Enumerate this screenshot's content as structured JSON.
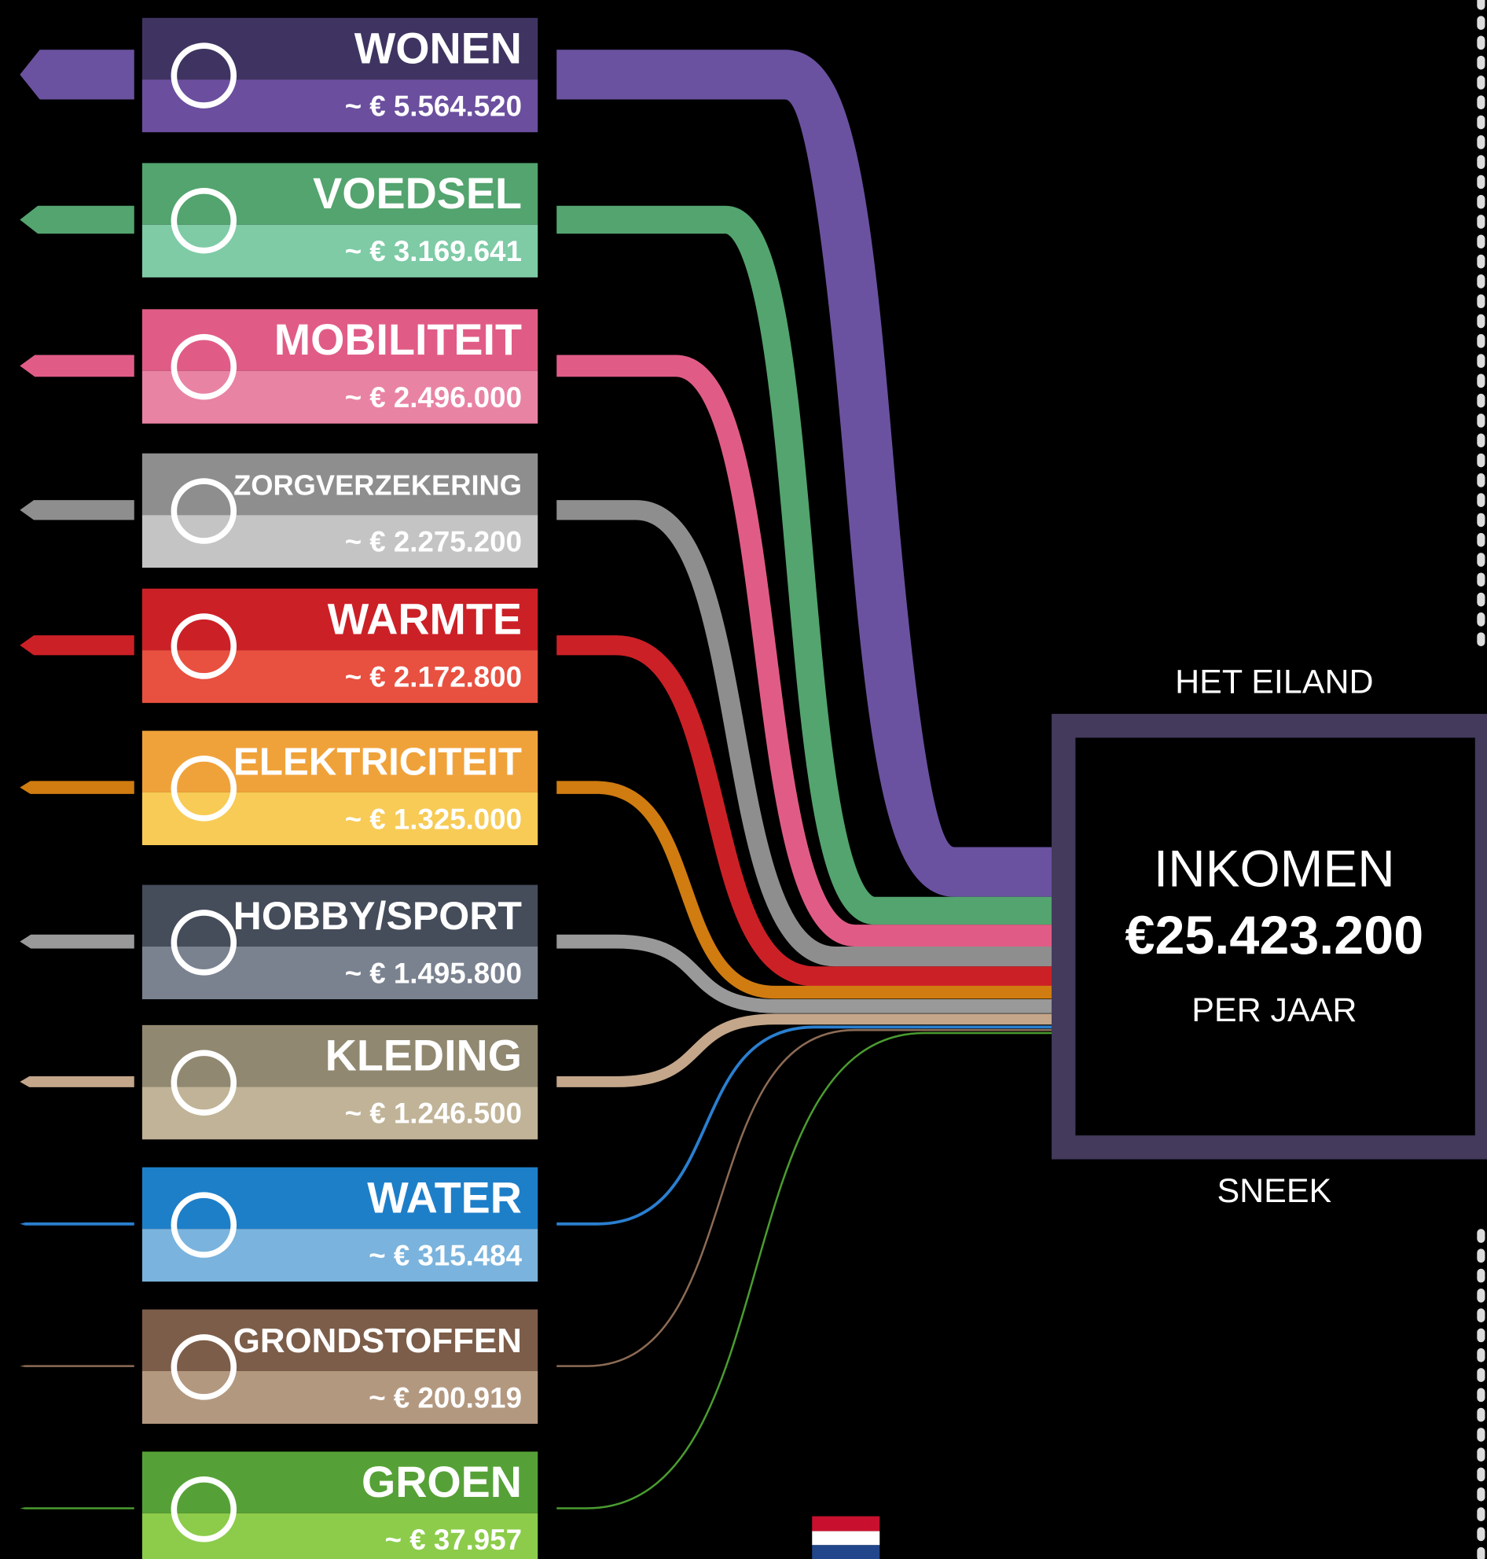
{
  "center": {
    "top": "HET EILAND",
    "title": "INKOMEN",
    "amount": "€25.423.200",
    "period": "PER JAAR",
    "bottom": "SNEEK"
  },
  "categories": [
    {
      "label": "WONEN",
      "amount": "~ € 5.564.520"
    },
    {
      "label": "VOEDSEL",
      "amount": "~ € 3.169.641"
    },
    {
      "label": "MOBILITEIT",
      "amount": "~ € 2.496.000"
    },
    {
      "label": "ZORGVERZEKERING",
      "amount": "~ € 2.275.200"
    },
    {
      "label": "WARMTE",
      "amount": "~ € 2.172.800"
    },
    {
      "label": "ELEKTRICITEIT",
      "amount": "~ € 1.325.000"
    },
    {
      "label": "HOBBY/SPORT",
      "amount": "~ € 1.495.800"
    },
    {
      "label": "KLEDING",
      "amount": "~ € 1.246.500"
    },
    {
      "label": "WATER",
      "amount": "~ € 315.484"
    },
    {
      "label": "GRONDSTOFFEN",
      "amount": "~ € 200.919"
    },
    {
      "label": "GROEN",
      "amount": "~ € 37.957"
    }
  ]
}
